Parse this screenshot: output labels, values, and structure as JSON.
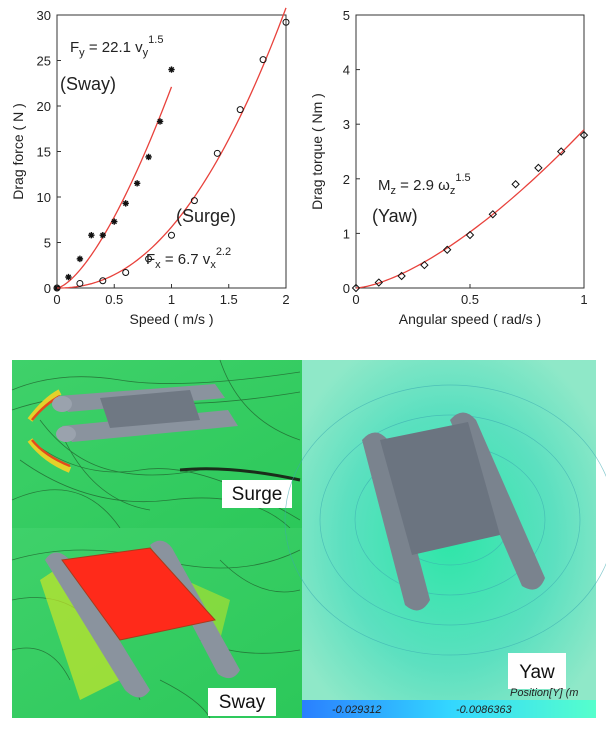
{
  "chart_data": [
    {
      "type": "scatter",
      "xlabel": "Speed ( m/s )",
      "ylabel": "Drag force ( N )",
      "xlim": [
        0,
        2
      ],
      "xticks": [
        0,
        0.5,
        1,
        1.5,
        2
      ],
      "ylim": [
        0,
        30
      ],
      "yticks": [
        0,
        5,
        10,
        15,
        20,
        25,
        30
      ],
      "series": [
        {
          "name": "(Sway)",
          "marker": "asterisk",
          "color": "#111111",
          "x": [
            0,
            0.1,
            0.2,
            0.3,
            0.4,
            0.5,
            0.6,
            0.7,
            0.8,
            0.9,
            1.0
          ],
          "values": [
            0,
            1.2,
            3.2,
            5.8,
            5.8,
            7.3,
            9.3,
            11.5,
            14.4,
            18.3,
            24.0
          ],
          "fit": {
            "coefficient": 22.1,
            "exponent": 1.5,
            "x_range": [
              0,
              1
            ],
            "color": "#e8423c"
          },
          "equation": {
            "lhs": "F",
            "lhs_sub": "y",
            "eq": " = ",
            "var": " v",
            "var_sub": "y"
          }
        },
        {
          "name": "(Surge)",
          "marker": "circle",
          "color": "#111111",
          "x": [
            0,
            0.2,
            0.4,
            0.6,
            0.8,
            1.0,
            1.2,
            1.4,
            1.6,
            1.8,
            2.0
          ],
          "values": [
            0,
            0.5,
            0.8,
            1.7,
            3.2,
            5.8,
            9.6,
            14.8,
            19.6,
            25.1,
            29.2
          ],
          "fit": {
            "coefficient": 6.7,
            "exponent": 2.2,
            "x_range": [
              0,
              2
            ],
            "color": "#e8423c"
          },
          "equation": {
            "lhs": "F",
            "lhs_sub": "x",
            "eq": " = ",
            "var": " v",
            "var_sub": "x"
          }
        }
      ]
    },
    {
      "type": "scatter",
      "xlabel": "Angular speed ( rad/s )",
      "ylabel": "Drag torque ( Nm )",
      "xlim": [
        0,
        1
      ],
      "xticks": [
        0,
        0.5,
        1
      ],
      "ylim": [
        0,
        5
      ],
      "yticks": [
        0,
        1,
        2,
        3,
        4,
        5
      ],
      "series": [
        {
          "name": "(Yaw)",
          "marker": "diamond",
          "color": "#111111",
          "x": [
            0,
            0.1,
            0.2,
            0.3,
            0.4,
            0.5,
            0.6,
            0.7,
            0.8,
            0.9,
            1.0
          ],
          "values": [
            0,
            0.1,
            0.22,
            0.42,
            0.7,
            0.97,
            1.35,
            1.9,
            2.2,
            2.5,
            2.8
          ],
          "fit": {
            "coefficient": 2.9,
            "exponent": 1.5,
            "x_range": [
              0,
              1
            ],
            "color": "#e8423c"
          },
          "equation": {
            "lhs": "M",
            "lhs_sub": "z",
            "eq": " = ",
            "var": " ω",
            "var_sub": "z"
          }
        }
      ]
    }
  ],
  "images": {
    "panels": [
      {
        "label": "Surge"
      },
      {
        "label": "Sway"
      },
      {
        "label": "Yaw",
        "colorbar": {
          "title": "Position[Y] (m",
          "tick_labels": [
            "-0.029312",
            "-0.0086363"
          ]
        }
      }
    ]
  }
}
